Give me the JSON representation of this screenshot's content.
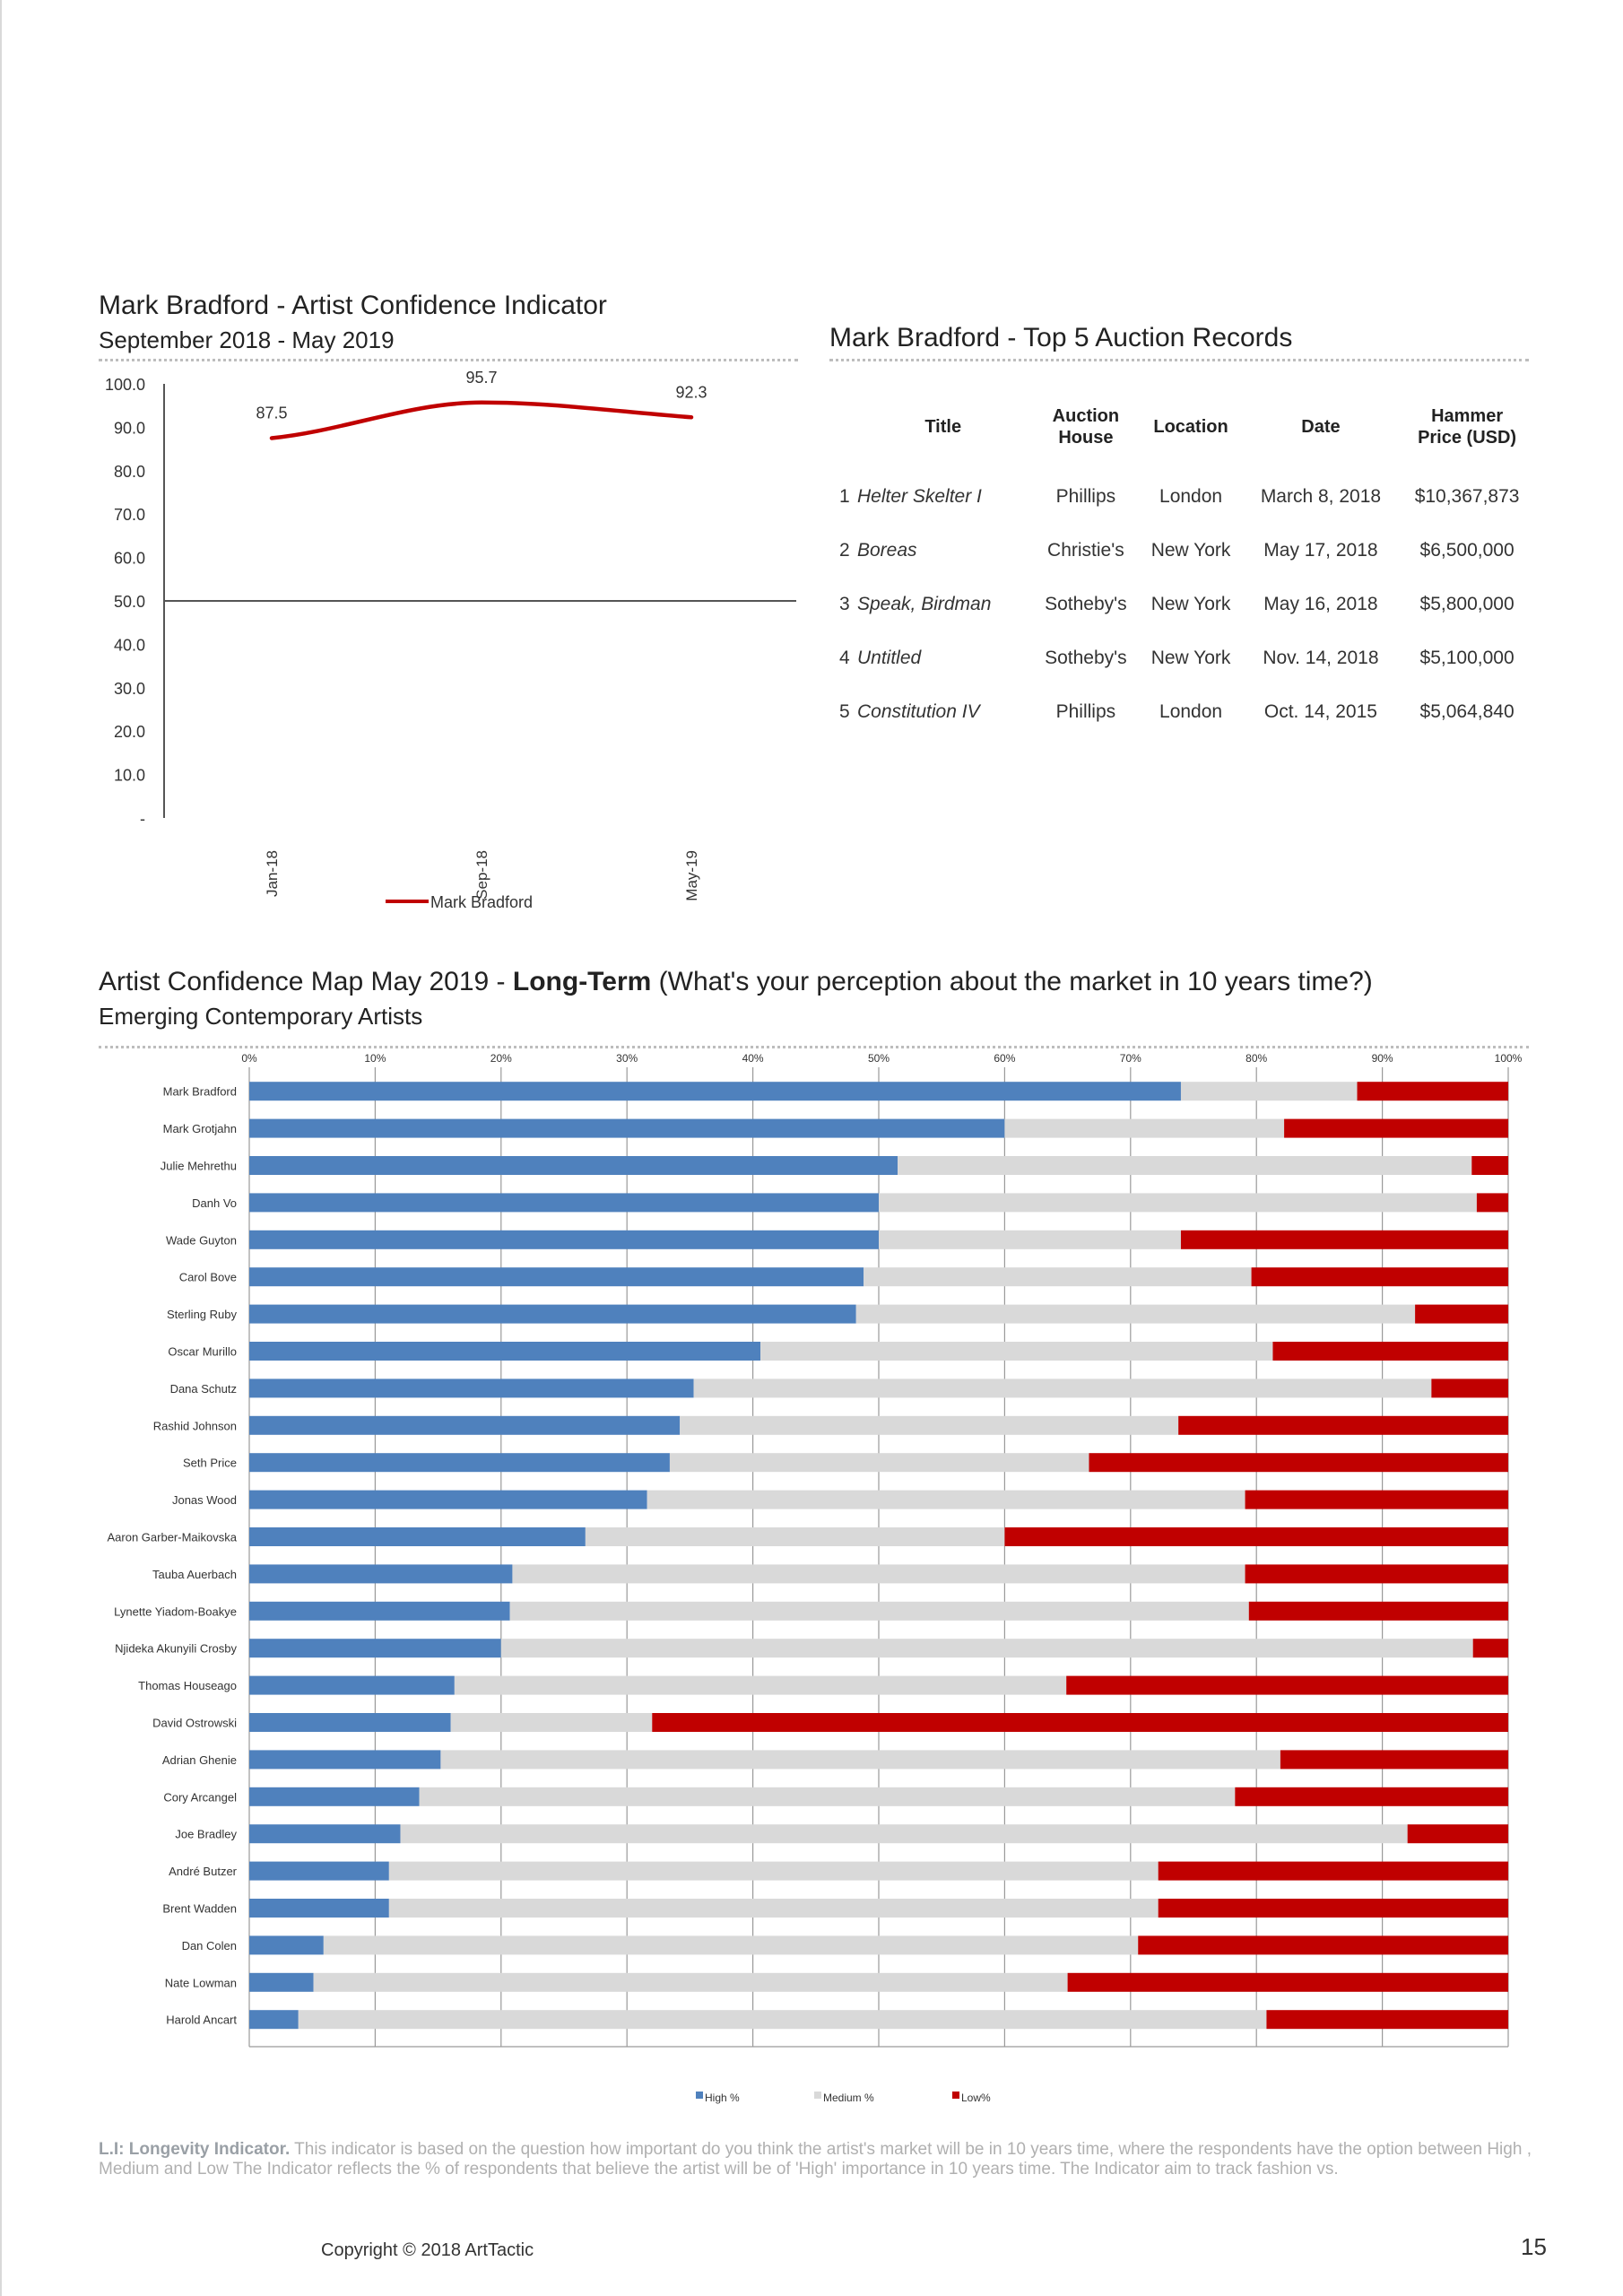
{
  "aci": {
    "title": "Mark Bradford - Artist Confidence Indicator",
    "subtitle": "September 2018 - May 2019"
  },
  "records": {
    "title": "Mark Bradford - Top 5 Auction Records",
    "headers": {
      "title": "Title",
      "house_line1": "Auction",
      "house_line2": "House",
      "location": "Location",
      "date": "Date",
      "price_line1": "Hammer",
      "price_line2": "Price (USD)"
    },
    "rows": [
      {
        "rank": "1",
        "title": "Helter Skelter I",
        "house": "Phillips",
        "location": "London",
        "date": "March 8, 2018",
        "price": "$10,367,873"
      },
      {
        "rank": "2",
        "title": "Boreas",
        "house": "Christie's",
        "location": "New York",
        "date": "May 17, 2018",
        "price": "$6,500,000"
      },
      {
        "rank": "3",
        "title": "Speak, Birdman",
        "house": "Sotheby's",
        "location": "New York",
        "date": "May 16, 2018",
        "price": "$5,800,000"
      },
      {
        "rank": "4",
        "title": "Untitled",
        "house": "Sotheby's",
        "location": "New York",
        "date": "Nov. 14, 2018",
        "price": "$5,100,000"
      },
      {
        "rank": "5",
        "title": "Constitution IV",
        "house": "Phillips",
        "location": "London",
        "date": "Oct. 14, 2015",
        "price": "$5,064,840"
      }
    ]
  },
  "map": {
    "title_prefix": "Artist Confidence Map May 2019 - ",
    "title_bold": "Long-Term",
    "title_suffix": " (What's your perception about the market in 10 years time?)",
    "subtitle": "Emerging Contemporary Artists"
  },
  "footnote": {
    "bold": "L.I: Longevity Indicator.",
    "text": " This indicator is based on the question how important do you think the artist's market will be in 10 years time, where the respondents have the option between High , Medium and Low The Indicator reflects the % of respondents that believe the artist will be of 'High' importance in 10 years time. The Indicator aim to track fashion vs."
  },
  "copyright": "Copyright © 2018 ArtTactic",
  "page_number": "15",
  "chart_data": [
    {
      "type": "line",
      "x": [
        "Jan-18",
        "Sep-18",
        "May-19"
      ],
      "series": [
        {
          "name": "Mark Bradford",
          "values": [
            87.5,
            95.7,
            92.3
          ],
          "color": "#c00000"
        }
      ],
      "data_labels": [
        "87.5",
        "95.7",
        "92.3"
      ],
      "yticks": [
        "100.0",
        "90.0",
        "80.0",
        "70.0",
        "60.0",
        "50.0",
        "40.0",
        "30.0",
        "20.0",
        "10.0",
        "-"
      ],
      "ylim": [
        0,
        100
      ],
      "reference_line": 50,
      "legend_position": "bottom",
      "grid": false
    },
    {
      "type": "bar",
      "orientation": "horizontal",
      "stacked": true,
      "categories": [
        "Mark Bradford",
        "Mark Grotjahn",
        "Julie Mehrethu",
        "Danh Vo",
        "Wade Guyton",
        "Carol Bove",
        "Sterling Ruby",
        "Oscar Murillo",
        "Dana Schutz",
        "Rashid Johnson",
        "Seth Price",
        "Jonas Wood",
        "Aaron Garber-Maikovska",
        "Tauba Auerbach",
        "Lynette Yiadom-Boakye",
        "Njideka Akunyili Crosby",
        "Thomas Houseago",
        "David Ostrowski",
        "Adrian Ghenie",
        "Cory Arcangel",
        "Joe Bradley",
        "André Butzer",
        "Brent Wadden",
        "Dan Colen",
        "Nate Lowman",
        "Harold Ancart"
      ],
      "series": [
        {
          "name": "High %",
          "color": "#4f81bd",
          "values": [
            74,
            60,
            51.5,
            50,
            50,
            48.8,
            48.2,
            40.6,
            35.3,
            34.2,
            33.4,
            31.6,
            26.7,
            20.9,
            20.7,
            20,
            16.3,
            16,
            15.2,
            13.5,
            12,
            11.1,
            11.1,
            5.9,
            5.1,
            3.9
          ]
        },
        {
          "name": "Medium %",
          "color": "#d9d9d9",
          "values": [
            14,
            22.2,
            45.6,
            47.5,
            24,
            30.8,
            44.4,
            40.7,
            58.6,
            39.6,
            33.3,
            47.5,
            33.3,
            58.2,
            58.7,
            77.2,
            48.6,
            16,
            66.7,
            64.8,
            80,
            61.1,
            61.1,
            64.7,
            59.9,
            76.9
          ]
        },
        {
          "name": "Low%",
          "color": "#c00000",
          "values": [
            12,
            17.8,
            2.9,
            2.5,
            26,
            20.4,
            7.4,
            18.7,
            6.1,
            26.2,
            33.3,
            20.9,
            40,
            20.9,
            20.6,
            2.8,
            35.1,
            68,
            18.1,
            21.7,
            8,
            27.8,
            27.8,
            29.4,
            35,
            19.2
          ]
        }
      ],
      "xticks": [
        "0%",
        "10%",
        "20%",
        "30%",
        "40%",
        "50%",
        "60%",
        "70%",
        "80%",
        "90%",
        "100%"
      ],
      "xlim": [
        0,
        100
      ],
      "legend_position": "bottom",
      "grid": true
    }
  ]
}
